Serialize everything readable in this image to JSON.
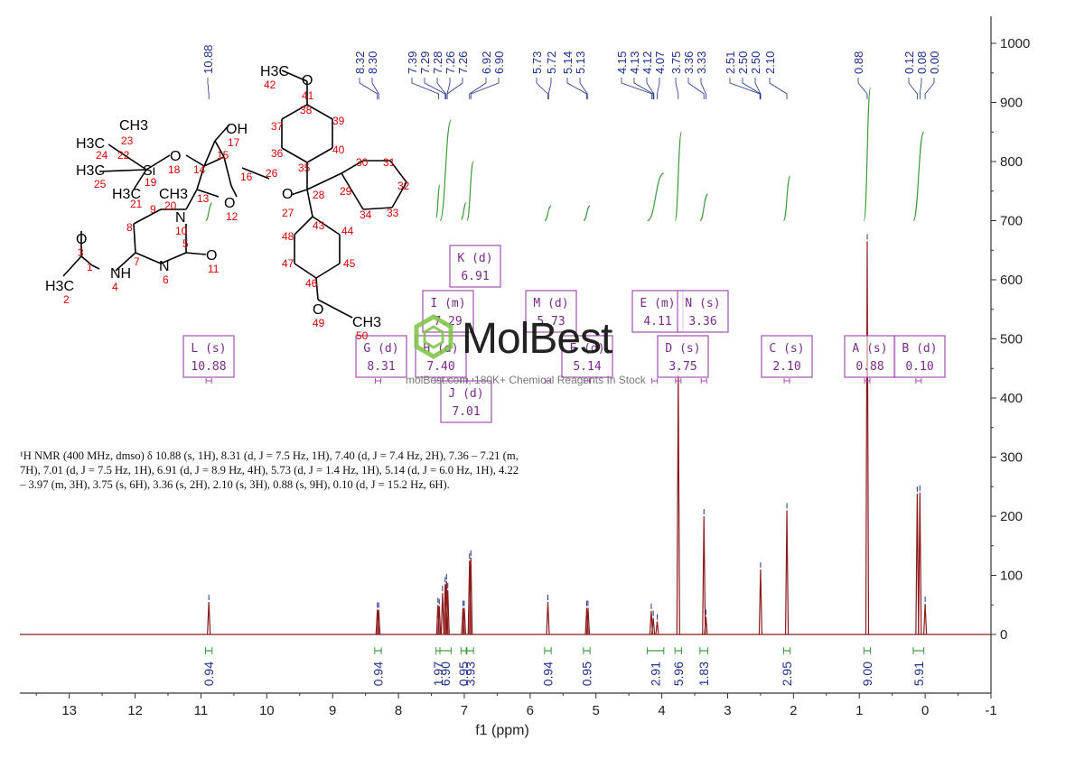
{
  "chart_data": {
    "type": "line",
    "xlabel": "f1 (ppm)",
    "xlim": [
      14.0,
      -1.0
    ],
    "ylim": [
      -100,
      1040
    ],
    "x_ticks": [
      "13",
      "12",
      "11",
      "10",
      "9",
      "8",
      "7",
      "6",
      "5",
      "4",
      "3",
      "2",
      "1",
      "0",
      "-1"
    ],
    "y_ticks": [
      "0",
      "100",
      "200",
      "300",
      "400",
      "500",
      "600",
      "700",
      "800",
      "900",
      "1000"
    ],
    "peak_labels": [
      "10.88",
      "8.32",
      "8.30",
      "7.39",
      "7.29",
      "7.28",
      "7.26",
      "7.26",
      "6.92",
      "6.90",
      "5.73",
      "5.72",
      "5.14",
      "5.13",
      "4.15",
      "4.13",
      "4.12",
      "4.07",
      "3.75",
      "3.36",
      "3.33",
      "2.51",
      "2.50",
      "2.50",
      "2.10",
      "0.88",
      "0.12",
      "0.08",
      "0.00"
    ],
    "peaks": [
      {
        "x": 10.88,
        "y": 55
      },
      {
        "x": 8.32,
        "y": 42
      },
      {
        "x": 8.3,
        "y": 42
      },
      {
        "x": 7.4,
        "y": 50
      },
      {
        "x": 7.38,
        "y": 48
      },
      {
        "x": 7.33,
        "y": 70
      },
      {
        "x": 7.29,
        "y": 85
      },
      {
        "x": 7.27,
        "y": 90
      },
      {
        "x": 7.25,
        "y": 75
      },
      {
        "x": 7.02,
        "y": 45
      },
      {
        "x": 7.0,
        "y": 45
      },
      {
        "x": 6.92,
        "y": 125
      },
      {
        "x": 6.9,
        "y": 130
      },
      {
        "x": 5.73,
        "y": 55
      },
      {
        "x": 5.14,
        "y": 45
      },
      {
        "x": 5.12,
        "y": 45
      },
      {
        "x": 4.16,
        "y": 40
      },
      {
        "x": 4.13,
        "y": 28
      },
      {
        "x": 4.07,
        "y": 22
      },
      {
        "x": 3.75,
        "y": 440
      },
      {
        "x": 3.36,
        "y": 200
      },
      {
        "x": 3.33,
        "y": 30
      },
      {
        "x": 2.5,
        "y": 110
      },
      {
        "x": 2.1,
        "y": 210
      },
      {
        "x": 0.88,
        "y": 665
      },
      {
        "x": 0.12,
        "y": 238
      },
      {
        "x": 0.08,
        "y": 240
      },
      {
        "x": 0.0,
        "y": 52
      }
    ],
    "integrals": [
      {
        "from": 10.93,
        "to": 10.83,
        "value": "0.94",
        "center": 10.88,
        "start": 700,
        "end": 730
      },
      {
        "from": 8.36,
        "to": 8.26,
        "value": "0.94",
        "center": 8.31,
        "start": 0,
        "end": 0
      },
      {
        "from": 7.43,
        "to": 7.37,
        "value": "1.97",
        "center": 7.4,
        "start": 705,
        "end": 760
      },
      {
        "from": 7.37,
        "to": 7.2,
        "value": "6.90",
        "center": 7.29,
        "start": 700,
        "end": 870
      },
      {
        "from": 7.05,
        "to": 6.97,
        "value": "0.95",
        "center": 7.01,
        "start": 702,
        "end": 730
      },
      {
        "from": 6.96,
        "to": 6.86,
        "value": "3.93",
        "center": 6.91,
        "start": 700,
        "end": 800
      },
      {
        "from": 5.78,
        "to": 5.68,
        "value": "0.94",
        "center": 5.73,
        "start": 700,
        "end": 725
      },
      {
        "from": 5.19,
        "to": 5.09,
        "value": "0.95",
        "center": 5.14,
        "start": 700,
        "end": 725
      },
      {
        "from": 4.22,
        "to": 3.97,
        "value": "2.91",
        "center": 4.1,
        "start": 700,
        "end": 780
      },
      {
        "from": 3.8,
        "to": 3.7,
        "value": "5.96",
        "center": 3.75,
        "start": 700,
        "end": 850
      },
      {
        "from": 3.42,
        "to": 3.3,
        "value": "1.83",
        "center": 3.36,
        "start": 700,
        "end": 745
      },
      {
        "from": 2.15,
        "to": 2.05,
        "value": "2.95",
        "center": 2.1,
        "start": 700,
        "end": 775
      },
      {
        "from": 0.93,
        "to": 0.83,
        "value": "9.00",
        "center": 0.88,
        "start": 700,
        "end": 925
      },
      {
        "from": 0.18,
        "to": 0.02,
        "value": "5.91",
        "center": 0.1,
        "start": 700,
        "end": 850
      }
    ],
    "multiplets": [
      {
        "letter": "L",
        "type": "s",
        "shift": "10.88",
        "center": 10.88
      },
      {
        "letter": "G",
        "type": "d",
        "shift": "8.31",
        "center": 8.31
      },
      {
        "letter": "H",
        "type": "d",
        "shift": "7.40",
        "center": 7.4
      },
      {
        "letter": "I",
        "type": "m",
        "shift": "7.29",
        "center": 7.29
      },
      {
        "letter": "K",
        "type": "d",
        "shift": "6.91",
        "center": 6.91
      },
      {
        "letter": "J",
        "type": "d",
        "shift": "7.01",
        "center": 7.01
      },
      {
        "letter": "M",
        "type": "d",
        "shift": "5.73",
        "center": 5.73
      },
      {
        "letter": "F",
        "type": "d",
        "shift": "5.14",
        "center": 5.14
      },
      {
        "letter": "E",
        "type": "m",
        "shift": "4.11",
        "center": 4.11
      },
      {
        "letter": "N",
        "type": "s",
        "shift": "3.36",
        "center": 3.36
      },
      {
        "letter": "D",
        "type": "s",
        "shift": "3.75",
        "center": 3.75
      },
      {
        "letter": "C",
        "type": "s",
        "shift": "2.10",
        "center": 2.1
      },
      {
        "letter": "A",
        "type": "s",
        "shift": "0.88",
        "center": 0.88
      },
      {
        "letter": "B",
        "type": "d",
        "shift": "0.10",
        "center": 0.1
      }
    ],
    "colors": {
      "spectrum": "#8b1a1a",
      "peak_labels": "#1f2f8f",
      "integrals": "#3a9a3a",
      "multiplet_boxes": "#a050b0"
    }
  },
  "description": {
    "text": "¹H NMR (400 MHz, dmso) δ 10.88 (s, 1H), 8.31 (d, J = 7.5 Hz, 1H), 7.40 (d, J = 7.4 Hz, 2H), 7.36 – 7.21 (m, 7H), 7.01 (d, J = 7.5 Hz, 1H), 6.91 (d, J = 8.9 Hz, 4H), 5.73 (d, J = 1.4 Hz, 1H), 5.14 (d, J = 6.0 Hz, 1H), 4.22 – 3.97 (m, 3H), 3.75 (s, 6H), 3.36 (s, 2H), 2.10 (s, 3H), 0.88 (s, 9H), 0.10 (d, J = 15.2 Hz, 6H)."
  },
  "watermark": {
    "brand": "MolBest",
    "tagline": "molBest.com, 180K+ Chemical Reagents In Stock"
  },
  "molecule": {
    "atom_labels": [
      "H3C",
      "42",
      "O",
      "41",
      "38",
      "39",
      "37",
      "40",
      "36",
      "35",
      "OH",
      "17",
      "15",
      "16",
      "26",
      "CH3",
      "23",
      "H3C",
      "24",
      "22",
      "Si",
      "O",
      "18",
      "14",
      "H3C",
      "25",
      "19",
      "21",
      "H3C",
      "CH3",
      "20",
      "13",
      "O",
      "12",
      "N",
      "10",
      "9",
      "8",
      "5",
      "O",
      "11",
      "O",
      "3",
      "1",
      "NH",
      "4",
      "7",
      "N",
      "6",
      "H3C",
      "2",
      "O",
      "27",
      "28",
      "29",
      "30",
      "31",
      "32",
      "33",
      "34",
      "43",
      "44",
      "48",
      "45",
      "47",
      "46",
      "O",
      "49",
      "CH3",
      "50"
    ]
  }
}
